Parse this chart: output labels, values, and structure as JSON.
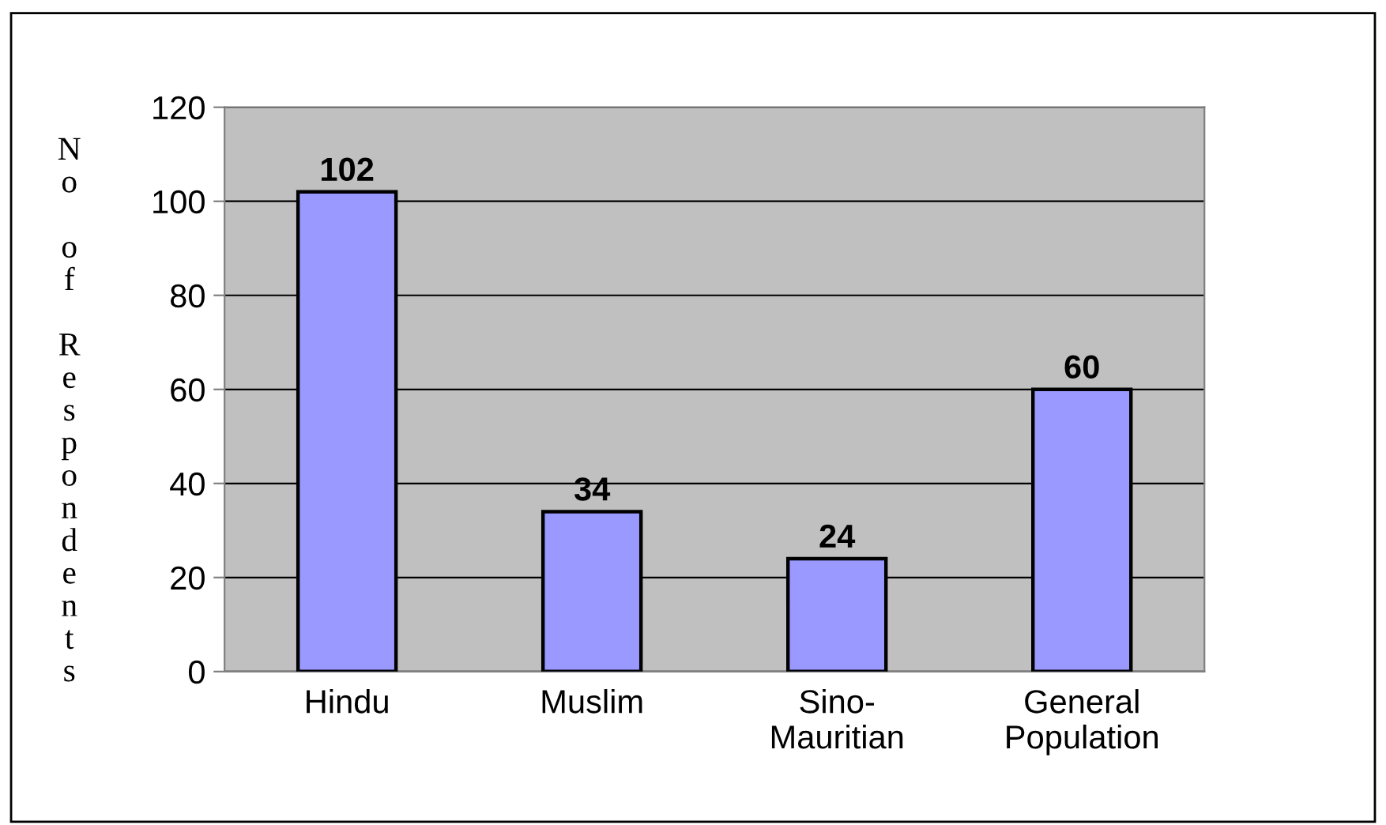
{
  "chart_data": {
    "type": "bar",
    "ylabel": "No of Respondents",
    "categories": [
      "Hindu",
      "Muslim",
      "Sino-\nMauritian",
      "General\nPopulation"
    ],
    "values": [
      102,
      34,
      24,
      60
    ],
    "color": "#9999ff",
    "ylim": [
      0,
      120
    ],
    "yticks": [
      0,
      20,
      40,
      60,
      80,
      100,
      120
    ],
    "grid": "y",
    "data_labels": true,
    "legend": false
  }
}
